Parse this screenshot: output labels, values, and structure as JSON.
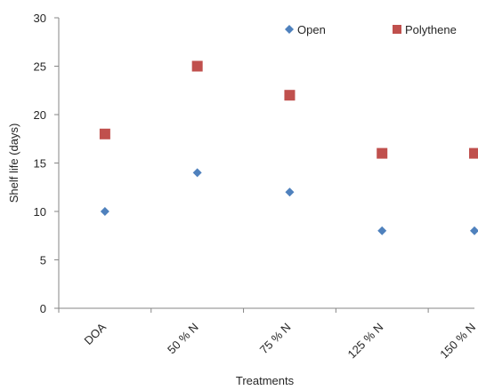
{
  "chart_data": {
    "type": "scatter",
    "categories": [
      "DOA",
      "50 % N",
      "75 % N",
      "125 % N",
      "150 % N"
    ],
    "series": [
      {
        "name": "Open",
        "marker": "diamond",
        "color": "#4F81BD",
        "values": [
          10,
          14,
          12,
          8,
          8
        ]
      },
      {
        "name": "Polythene",
        "marker": "square",
        "color": "#C0504D",
        "values": [
          18,
          25,
          22,
          16,
          16
        ]
      }
    ],
    "xlabel": "Treatments",
    "ylabel": "Shelf life (days)",
    "ylim": [
      0,
      30
    ],
    "yticks": [
      0,
      5,
      10,
      15,
      20,
      25,
      30
    ],
    "grid": false,
    "legend": "top-right"
  }
}
